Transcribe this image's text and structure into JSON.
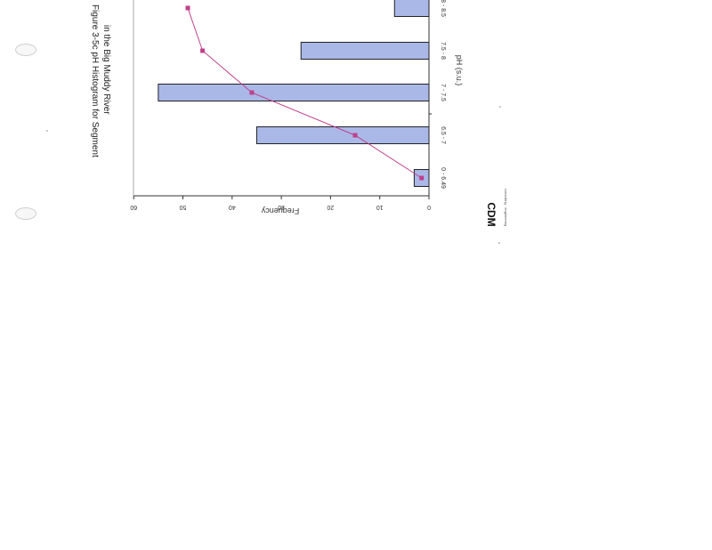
{
  "chart_data": {
    "type": "bar",
    "title": "Figure 3-5c pH Histogram for Segment",
    "subtitle": "in the Big Muddy River",
    "xlabel": "pH (s.u.)",
    "ylabel": "Frequency",
    "categories": [
      "0 - 6.49",
      "6.5 - 7",
      "7 - 7.5",
      "7.5 - 8",
      "8 - 8.5"
    ],
    "series": [
      {
        "values": [
          3,
          35,
          55,
          26,
          7
        ],
        "color": "#aab8e8",
        "kind": "bar"
      },
      {
        "values": [
          1.5,
          15,
          36,
          46,
          49
        ],
        "color": "#c0408a",
        "kind": "line"
      }
    ],
    "ylim": [
      0,
      60
    ],
    "yticks": [
      0,
      10,
      20,
      30,
      40,
      50,
      60
    ],
    "grid": false,
    "legend": "none",
    "orientation": "page rotated 90° clockwise"
  },
  "logo": {
    "text": "CDM",
    "tagline": "consulting · engineering"
  }
}
